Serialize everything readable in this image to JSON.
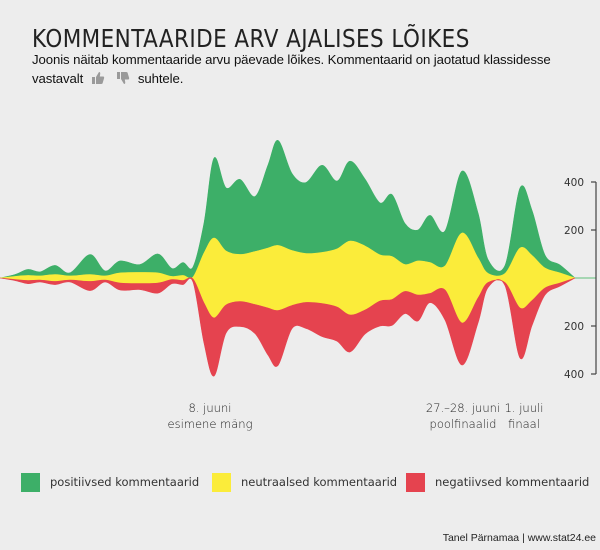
{
  "header": {
    "title": "KOMMENTAARIDE ARV AJALISES LÕIKES",
    "subtitle_line1": "Joonis näitab kommentaaride arvu päevade lõikes. Kommentaarid on jaotatud klassidesse",
    "subtitle_prefix": "vastavalt",
    "subtitle_suffix": "suhtele.",
    "icons": [
      "thumbs-up-icon",
      "thumbs-down-icon"
    ]
  },
  "colors": {
    "positive": "#3daf68",
    "neutral": "#fbec3a",
    "negative": "#e5434f",
    "background": "#ededed",
    "axis": "#444444"
  },
  "chart_data": {
    "type": "area",
    "subtype": "streamgraph",
    "title": "KOMMENTAARIDE ARV AJALISES LÕIKES",
    "xlabel": "",
    "ylabel": "",
    "x_index": [
      0,
      1,
      2,
      3,
      4,
      5,
      6,
      7,
      8,
      9,
      10,
      11,
      12,
      13,
      14,
      15,
      16,
      17,
      18,
      19,
      20,
      21,
      22,
      23,
      24,
      25,
      26,
      27,
      28,
      29,
      30,
      31,
      32,
      33,
      34,
      35,
      36,
      37,
      38,
      39,
      40,
      41
    ],
    "series": [
      {
        "name": "positiivsed kommentaarid",
        "values": [
          0,
          8,
          25,
          17,
          38,
          13,
          83,
          21,
          50,
          33,
          79,
          33,
          54,
          42,
          125,
          333,
          263,
          313,
          229,
          346,
          438,
          321,
          296,
          363,
          283,
          333,
          279,
          217,
          258,
          171,
          129,
          196,
          146,
          258,
          188,
          58,
          33,
          250,
          188,
          54,
          33,
          0
        ]
      },
      {
        "name": "neutraalsed kommentaarid",
        "values": [
          0,
          13,
          21,
          17,
          29,
          17,
          29,
          17,
          42,
          46,
          42,
          13,
          21,
          8,
          208,
          333,
          225,
          196,
          221,
          250,
          271,
          229,
          204,
          213,
          242,
          308,
          267,
          192,
          179,
          112,
          142,
          129,
          100,
          375,
          167,
          38,
          38,
          250,
          188,
          83,
          42,
          0
        ]
      },
      {
        "name": "negatiivsed kommentaarid",
        "values": [
          0,
          4,
          13,
          8,
          13,
          8,
          38,
          8,
          29,
          25,
          42,
          17,
          17,
          13,
          167,
          242,
          117,
          104,
          121,
          196,
          229,
          96,
          108,
          137,
          142,
          154,
          100,
          104,
          108,
          92,
          108,
          38,
          125,
          175,
          104,
          21,
          13,
          208,
          104,
          29,
          13,
          0
        ]
      }
    ],
    "y_axis": {
      "upper_ticks": [
        "400",
        "200"
      ],
      "lower_ticks": [
        "200",
        "400"
      ],
      "range_upper": 400,
      "range_lower": 400,
      "placement": "right"
    },
    "annotations": [
      {
        "line1": "8. juuni",
        "line2": "esimene mäng",
        "x_index": 15
      },
      {
        "line1": "27.–28. juuni",
        "line2": "poolfinaalid",
        "x_index": 33
      },
      {
        "line1": "1. juuli",
        "line2": "finaal",
        "x_index": 37
      }
    ],
    "legend": {
      "placement": "bottom",
      "items": [
        {
          "label": "positiivsed kommentaarid",
          "color": "#3daf68"
        },
        {
          "label": "neutraalsed kommentaarid",
          "color": "#fbec3a"
        },
        {
          "label": "negatiivsed kommentaarid",
          "color": "#e5434f"
        }
      ]
    },
    "grid": false
  },
  "footer": {
    "credit": "Tanel Pärnamaa | www.stat24.ee"
  }
}
